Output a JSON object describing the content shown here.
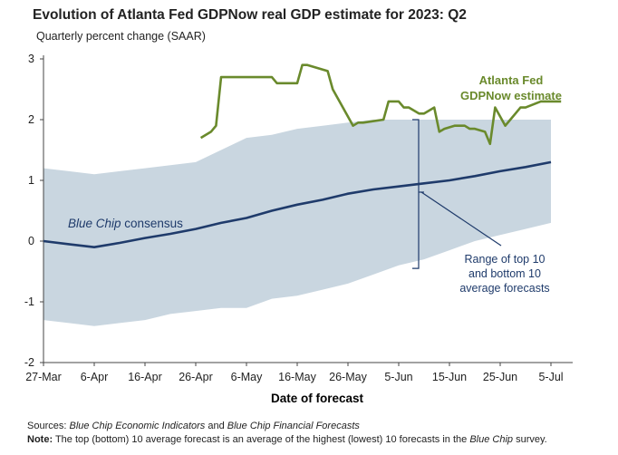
{
  "chart_data": {
    "type": "line",
    "title": "Evolution of Atlanta Fed GDPNow real GDP estimate for 2023: Q2",
    "subtitle": "Quarterly percent change (SAAR)",
    "xlabel": "Date of forecast",
    "ylabel": "",
    "ylim": [
      -2,
      3
    ],
    "y_ticks": [
      "-2",
      "-1",
      "0",
      "1",
      "2",
      "3"
    ],
    "x_ticks": [
      {
        "label": "27-Mar",
        "day": 0
      },
      {
        "label": "6-Apr",
        "day": 10
      },
      {
        "label": "16-Apr",
        "day": 20
      },
      {
        "label": "26-Apr",
        "day": 30
      },
      {
        "label": "6-May",
        "day": 40
      },
      {
        "label": "16-May",
        "day": 50
      },
      {
        "label": "26-May",
        "day": 60
      },
      {
        "label": "5-Jun",
        "day": 70
      },
      {
        "label": "15-Jun",
        "day": 80
      },
      {
        "label": "25-Jun",
        "day": 90
      },
      {
        "label": "5-Jul",
        "day": 100
      }
    ],
    "grid": false,
    "series": [
      {
        "name": "Atlanta Fed GDPNow estimate",
        "color": "#6a8a2c",
        "x": [
          31,
          33,
          34,
          35,
          45,
          46,
          50,
          51,
          52,
          56,
          57,
          61,
          62,
          63,
          67,
          68,
          69,
          70,
          71,
          72,
          74,
          75,
          77,
          78,
          79,
          81,
          83,
          84,
          85,
          87,
          88,
          89,
          91,
          92,
          93,
          94,
          95,
          98,
          99,
          100,
          101,
          102
        ],
        "y": [
          1.7,
          1.8,
          1.9,
          2.7,
          2.7,
          2.6,
          2.6,
          2.9,
          2.9,
          2.8,
          2.5,
          1.9,
          1.95,
          1.95,
          2.0,
          2.3,
          2.3,
          2.3,
          2.2,
          2.2,
          2.1,
          2.1,
          2.2,
          1.8,
          1.85,
          1.9,
          1.9,
          1.85,
          1.85,
          1.8,
          1.6,
          2.2,
          1.9,
          2.0,
          2.1,
          2.2,
          2.2,
          2.3,
          2.3,
          2.3,
          2.3,
          2.3
        ]
      },
      {
        "name": "Blue Chip consensus",
        "color": "#1f3b6b",
        "x": [
          0,
          5,
          10,
          15,
          20,
          25,
          30,
          35,
          40,
          45,
          50,
          55,
          60,
          65,
          70,
          75,
          80,
          85,
          90,
          95,
          100
        ],
        "y": [
          0.0,
          -0.05,
          -0.1,
          -0.03,
          0.05,
          0.12,
          0.2,
          0.3,
          0.38,
          0.5,
          0.6,
          0.68,
          0.78,
          0.85,
          0.9,
          0.95,
          1.0,
          1.07,
          1.15,
          1.22,
          1.3
        ]
      }
    ],
    "range_band": {
      "name": "Range of top 10 and bottom 10 average forecasts",
      "color": "#c9d6e0",
      "x": [
        0,
        5,
        10,
        15,
        20,
        25,
        30,
        35,
        40,
        45,
        50,
        55,
        60,
        65,
        70,
        75,
        80,
        85,
        90,
        95,
        100
      ],
      "upper": [
        1.2,
        1.15,
        1.1,
        1.15,
        1.2,
        1.25,
        1.3,
        1.5,
        1.7,
        1.75,
        1.85,
        1.9,
        1.95,
        2.0,
        2.0,
        2.0,
        2.0,
        2.0,
        2.0,
        2.0,
        2.0
      ],
      "lower": [
        -1.3,
        -1.35,
        -1.4,
        -1.35,
        -1.3,
        -1.2,
        -1.15,
        -1.1,
        -1.1,
        -0.95,
        -0.9,
        -0.8,
        -0.7,
        -0.55,
        -0.4,
        -0.3,
        -0.15,
        0.0,
        0.1,
        0.2,
        0.3
      ]
    },
    "annotations": {
      "gdpnow_label_line1": "Atlanta Fed",
      "gdpnow_label_line2": "GDPNow estimate",
      "bluechip_label_italic": "Blue Chip",
      "bluechip_label_rest": " consensus",
      "range_label_line1": "Range of top 10",
      "range_label_line2": "and bottom 10",
      "range_label_line3": "average forecasts"
    }
  },
  "footer": {
    "sources_label": "Sources:",
    "source1": "Blue Chip Economic Indicators",
    "and_text": " and ",
    "source2": "Blue Chip Financial Forecasts",
    "note_label": "Note:",
    "note_text": " The top (bottom) 10 average forecast is an average of the highest (lowest) 10 forecasts in the ",
    "note_italic": "Blue Chip",
    "note_end": " survey."
  }
}
